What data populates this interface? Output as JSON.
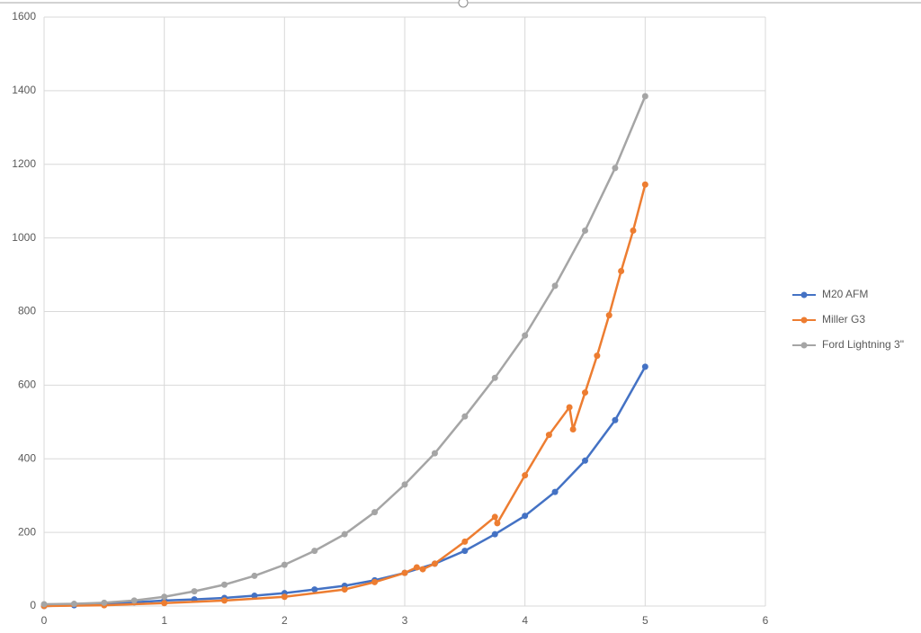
{
  "chart_data": {
    "type": "scatter",
    "grid": true,
    "legend": "right",
    "xlim": [
      0,
      6
    ],
    "xticks": [
      0,
      1,
      2,
      3,
      4,
      5,
      6
    ],
    "ylim": [
      0,
      1600
    ],
    "yticks": [
      0,
      200,
      400,
      600,
      800,
      1000,
      1200,
      1400,
      1600
    ],
    "series": [
      {
        "name": "M20 AFM",
        "color": "#4472c4",
        "x": [
          0,
          0.25,
          0.5,
          0.75,
          1,
          1.25,
          1.5,
          1.75,
          2,
          2.25,
          2.5,
          2.75,
          3,
          3.25,
          3.5,
          3.75,
          4,
          4.25,
          4.5,
          4.75,
          5
        ],
        "values": [
          0,
          2,
          5,
          10,
          15,
          18,
          22,
          28,
          35,
          45,
          55,
          70,
          90,
          115,
          150,
          195,
          245,
          310,
          395,
          505,
          650
        ]
      },
      {
        "name": "Miller G3",
        "color": "#ed7d31",
        "x": [
          0,
          0.5,
          1,
          1.5,
          2,
          2.5,
          2.75,
          3,
          3.1,
          3.15,
          3.25,
          3.5,
          3.75,
          3.77,
          4,
          4.2,
          4.37,
          4.4,
          4.5,
          4.6,
          4.7,
          4.8,
          4.9,
          5
        ],
        "values": [
          0,
          2,
          8,
          15,
          25,
          45,
          65,
          90,
          105,
          100,
          115,
          175,
          242,
          225,
          355,
          465,
          540,
          480,
          580,
          680,
          790,
          910,
          1020,
          1145
        ]
      },
      {
        "name": "Ford Lightning 3\"",
        "color": "#a5a5a5",
        "x": [
          0,
          0.25,
          0.5,
          0.75,
          1,
          1.25,
          1.5,
          1.75,
          2,
          2.25,
          2.5,
          2.75,
          3,
          3.25,
          3.5,
          3.75,
          4,
          4.25,
          4.5,
          4.75,
          5
        ],
        "values": [
          5,
          6,
          9,
          15,
          25,
          40,
          58,
          82,
          112,
          150,
          195,
          255,
          330,
          415,
          515,
          620,
          735,
          870,
          1020,
          1190,
          1385
        ]
      }
    ]
  }
}
